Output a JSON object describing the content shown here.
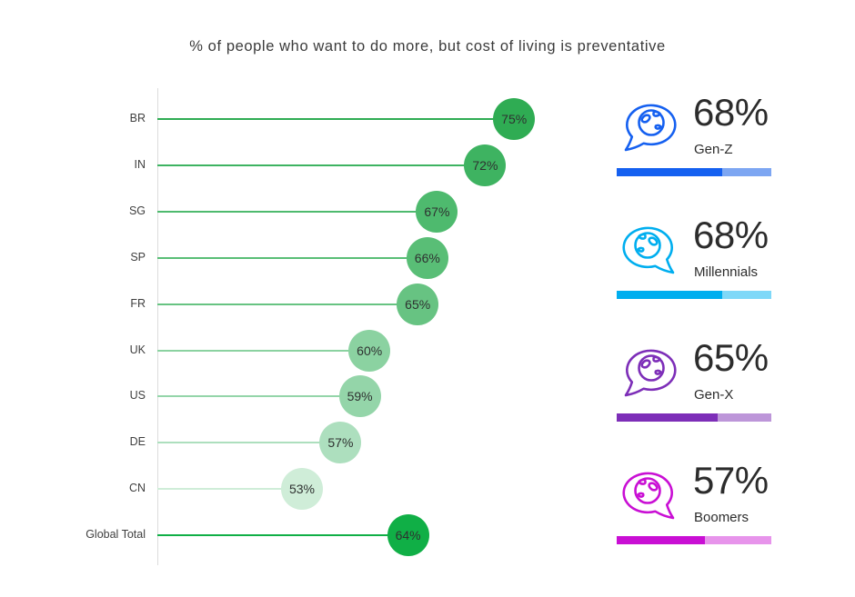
{
  "title": "% of people who want to do more, but cost of living is preventative",
  "chart_data": [
    {
      "type": "bar",
      "variant": "lollipop",
      "title": "% of people who want to do more, but cost of living is preventative",
      "categories": [
        "BR",
        "IN",
        "SG",
        "SP",
        "FR",
        "UK",
        "US",
        "DE",
        "CN",
        "Global Total"
      ],
      "values": [
        75,
        72,
        67,
        66,
        65,
        60,
        59,
        57,
        53,
        64
      ],
      "value_labels": [
        "75%",
        "72%",
        "67%",
        "66%",
        "65%",
        "60%",
        "59%",
        "57%",
        "53%",
        "64%"
      ],
      "colors": [
        "#2fac53",
        "#3eb361",
        "#4eba6e",
        "#59be76",
        "#67c382",
        "#8bd2a1",
        "#94d5a9",
        "#addfbe",
        "#cfedd8",
        "#10af46"
      ],
      "xlabel": "",
      "ylabel": "",
      "xlim": [
        38,
        80
      ],
      "grid": false,
      "legend": false
    },
    {
      "type": "bar",
      "variant": "icon-kpi-progress",
      "items": [
        {
          "label": "Gen-Z",
          "value": 68,
          "value_label": "68%",
          "color": "#1560f0",
          "track_color": "#7da6f2",
          "icon": "speech-bubble-globe-icon",
          "icon_tail": "left"
        },
        {
          "label": "Millennials",
          "value": 68,
          "value_label": "68%",
          "color": "#00aeef",
          "track_color": "#7fd8f8",
          "icon": "speech-bubble-globe-icon",
          "icon_tail": "right"
        },
        {
          "label": "Gen-X",
          "value": 65,
          "value_label": "65%",
          "color": "#7d2eb8",
          "track_color": "#bd96d9",
          "icon": "speech-bubble-globe-icon",
          "icon_tail": "left"
        },
        {
          "label": "Boomers",
          "value": 57,
          "value_label": "57%",
          "color": "#c90fd4",
          "track_color": "#e794eb",
          "icon": "speech-bubble-globe-icon",
          "icon_tail": "right"
        }
      ],
      "xlim": [
        0,
        100
      ]
    }
  ]
}
